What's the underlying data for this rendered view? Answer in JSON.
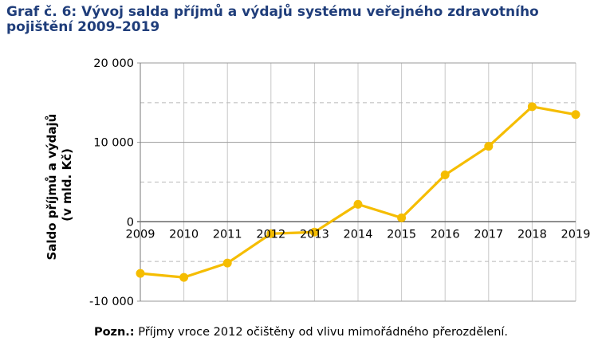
{
  "title": "Graf č. 6: Vývoj salda příjmů a výdajů systému veřejného zdravotního pojištění 2009–2019",
  "note": {
    "label": "Pozn.:",
    "text": "Příjmy vroce 2012 očištěny od vlivu mimořádného přerozdělení."
  },
  "colors": {
    "line": "#f5bd00",
    "title": "#1f3d7a",
    "grid": "#b0b0b0"
  },
  "chart_data": {
    "type": "line",
    "ylabel_lines": [
      "Saldo příjmů a výdajů",
      "(v mld. Kč)"
    ],
    "x": [
      "2009",
      "2010",
      "2011",
      "2012",
      "2013",
      "2014",
      "2015",
      "2016",
      "2017",
      "2018",
      "2019"
    ],
    "values": [
      -6500,
      -7000,
      -5200,
      -1500,
      -1300,
      2200,
      500,
      5900,
      9500,
      14500,
      13500
    ],
    "ylim": [
      -10000,
      20000
    ],
    "yticks": [
      -10000,
      0,
      10000,
      20000
    ],
    "ytick_labels": [
      "-10 000",
      "0",
      "10 000",
      "20 000"
    ],
    "minor_gridlines": [
      -5000,
      5000,
      15000
    ],
    "grid": true,
    "legend": "none"
  }
}
